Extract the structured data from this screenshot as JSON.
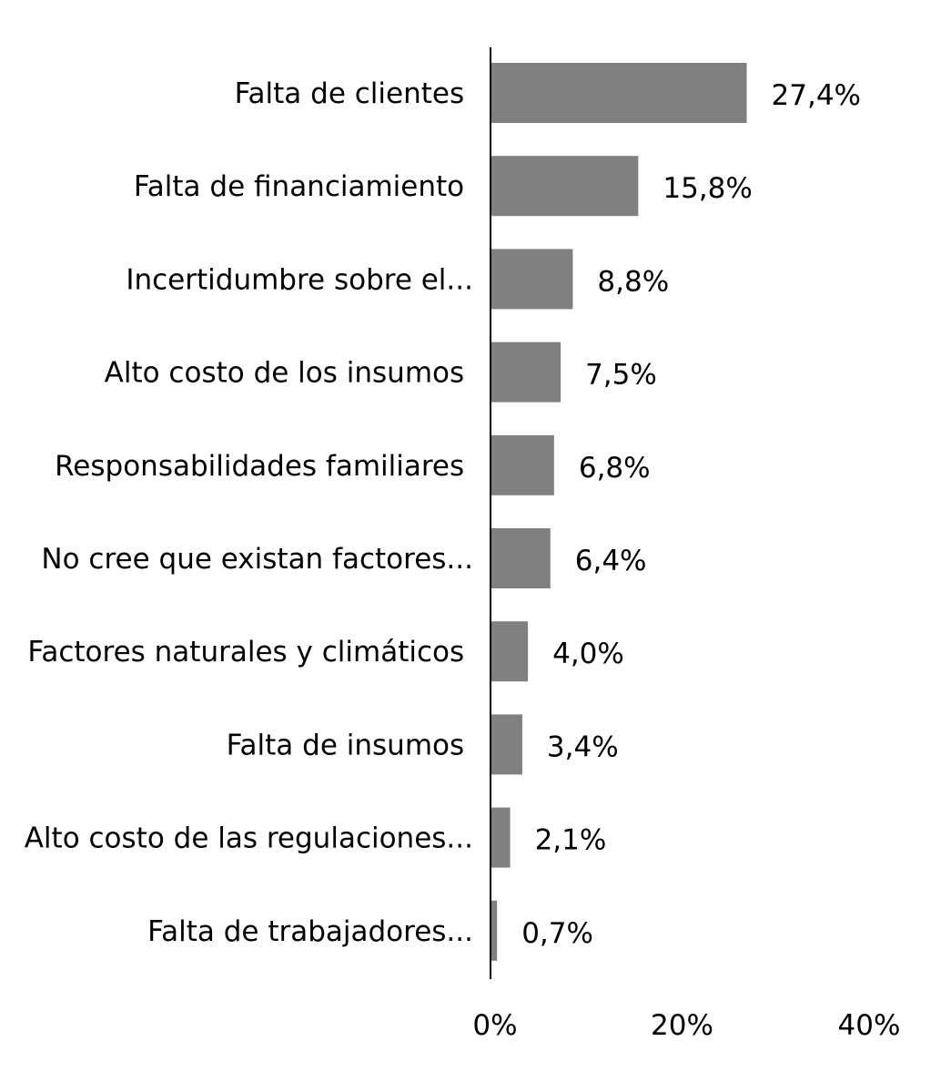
{
  "chart_data": {
    "type": "bar",
    "orientation": "horizontal",
    "title": "",
    "xlabel": "",
    "ylabel": "",
    "categories": [
      "Falta de clientes ",
      "Falta de financiamiento ",
      "Incertidumbre sobre el...",
      "Alto costo de los insumos ",
      "Responsabilidades familiares ",
      "No cree que existan factores...",
      "Factores naturales y climáticos ",
      "Falta de insumos ",
      "Alto costo de las regulaciones...",
      "Falta de trabajadores..."
    ],
    "values": [
      27.4,
      15.8,
      8.8,
      7.5,
      6.8,
      6.4,
      4.0,
      3.4,
      2.1,
      0.7
    ],
    "data_labels": [
      "27,4%",
      "15,8%",
      "8,8%",
      "7,5%",
      "6,8%",
      "6,4%",
      "4,0%",
      "3,4%",
      "2,1%",
      "0,7%"
    ],
    "xlim": [
      0,
      40
    ],
    "xticks": [
      0,
      20,
      40
    ],
    "xtick_labels": [
      "0%",
      "20%",
      "40%"
    ],
    "grid": false,
    "legend": "none",
    "colors": {
      "bar": "#808080",
      "axis": "#000000"
    }
  }
}
